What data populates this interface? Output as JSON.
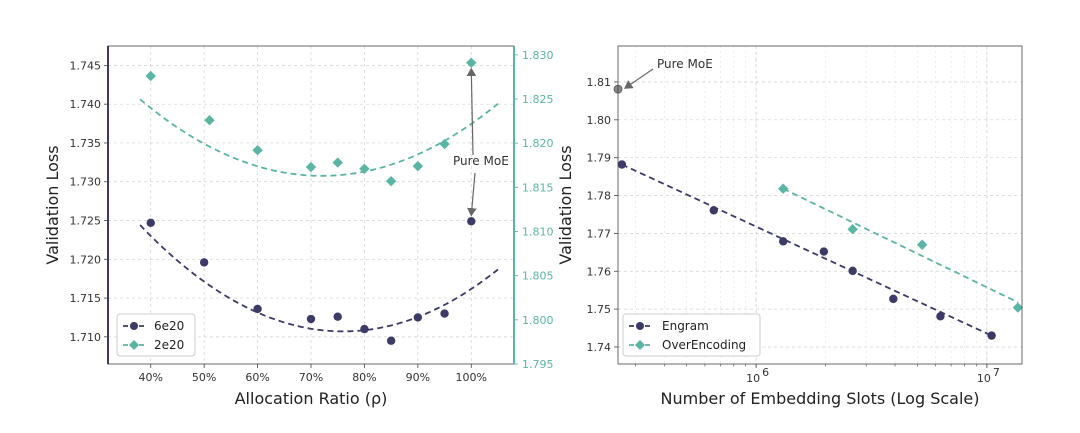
{
  "colors": {
    "navy": "#3c3a66",
    "teal": "#5bb5a5",
    "grid": "#d0d0d0",
    "annot": "#666666"
  },
  "chart_data": [
    {
      "type": "scatter",
      "xlabel": "Allocation Ratio (ρ)",
      "ylabel": "Validation Loss",
      "x_ticks": [
        "40%",
        "50%",
        "60%",
        "70%",
        "80%",
        "90%",
        "100%"
      ],
      "xlim": [
        0.32,
        1.08
      ],
      "ylim_left": [
        1.7065,
        1.7475
      ],
      "ylim_right": [
        1.795,
        1.831
      ],
      "y_ticks_left": [
        "1.710",
        "1.715",
        "1.720",
        "1.725",
        "1.730",
        "1.735",
        "1.740",
        "1.745"
      ],
      "y_ticks_right": [
        "1.795",
        "1.800",
        "1.805",
        "1.810",
        "1.815",
        "1.820",
        "1.825",
        "1.830"
      ],
      "grid": true,
      "legend_position": "lower-left",
      "series": [
        {
          "name": "6e20",
          "axis": "left",
          "marker": "circle",
          "color": "#3c3a66",
          "x": [
            0.4,
            0.5,
            0.6,
            0.7,
            0.75,
            0.8,
            0.85,
            0.9,
            0.95,
            1.0
          ],
          "y": [
            1.7247,
            1.7196,
            1.7136,
            1.7123,
            1.7126,
            1.711,
            1.7095,
            1.7125,
            1.713,
            1.7249
          ],
          "fit_x": [
            0.38,
            1.05
          ],
          "fit": {
            "a": 0.095,
            "h": 0.76,
            "k": 1.7107
          }
        },
        {
          "name": "2e20",
          "axis": "right",
          "marker": "diamond",
          "color": "#5bb5a5",
          "x": [
            0.4,
            0.51,
            0.6,
            0.7,
            0.75,
            0.8,
            0.85,
            0.9,
            0.95,
            1.0
          ],
          "y": [
            1.8276,
            1.8226,
            1.8192,
            1.8173,
            1.8178,
            1.8171,
            1.8157,
            1.8174,
            1.8199,
            1.8291
          ],
          "fit_x": [
            0.38,
            1.05
          ],
          "fit": {
            "a": 0.075,
            "h": 0.72,
            "k": 1.8163
          }
        }
      ],
      "annotation": {
        "text": "Pure MoE"
      }
    },
    {
      "type": "scatter",
      "x_scale": "log",
      "xlabel": "Number of Embedding Slots (Log Scale)",
      "ylabel": "Validation Loss",
      "x_ticks": [
        {
          "value": 1000000,
          "base": "10",
          "exp": "6"
        },
        {
          "value": 10000000,
          "base": "10",
          "exp": "7"
        }
      ],
      "xlim": [
        252000,
        14200000
      ],
      "ylim": [
        1.7355,
        1.8195
      ],
      "y_ticks": [
        "1.74",
        "1.75",
        "1.76",
        "1.77",
        "1.78",
        "1.79",
        "1.80",
        "1.81"
      ],
      "grid": true,
      "legend_position": "lower-left",
      "series": [
        {
          "name": "Engram",
          "marker": "circle",
          "color": "#3c3a66",
          "x": [
            262000,
            655000,
            1310000,
            1966000,
            2621000,
            3932000,
            6291000,
            10486000
          ],
          "y": [
            1.7882,
            1.7761,
            1.7679,
            1.7652,
            1.7601,
            1.7527,
            1.7481,
            1.743
          ],
          "fit_x": [
            262000,
            10486000
          ],
          "fit_y": [
            1.7882,
            1.743
          ]
        },
        {
          "name": "OverEncoding",
          "marker": "diamond",
          "color": "#5bb5a5",
          "x": [
            1310000,
            2621000,
            5242000,
            13631000
          ],
          "y": [
            1.7818,
            1.7711,
            1.767,
            1.7504
          ],
          "fit_x": [
            1310000,
            13631000
          ],
          "fit_y": [
            1.7818,
            1.7518
          ]
        }
      ],
      "extra_points": [
        {
          "x": 252000,
          "y": 1.8081,
          "color": "#888888"
        }
      ],
      "annotation": {
        "text": "Pure MoE"
      }
    }
  ]
}
